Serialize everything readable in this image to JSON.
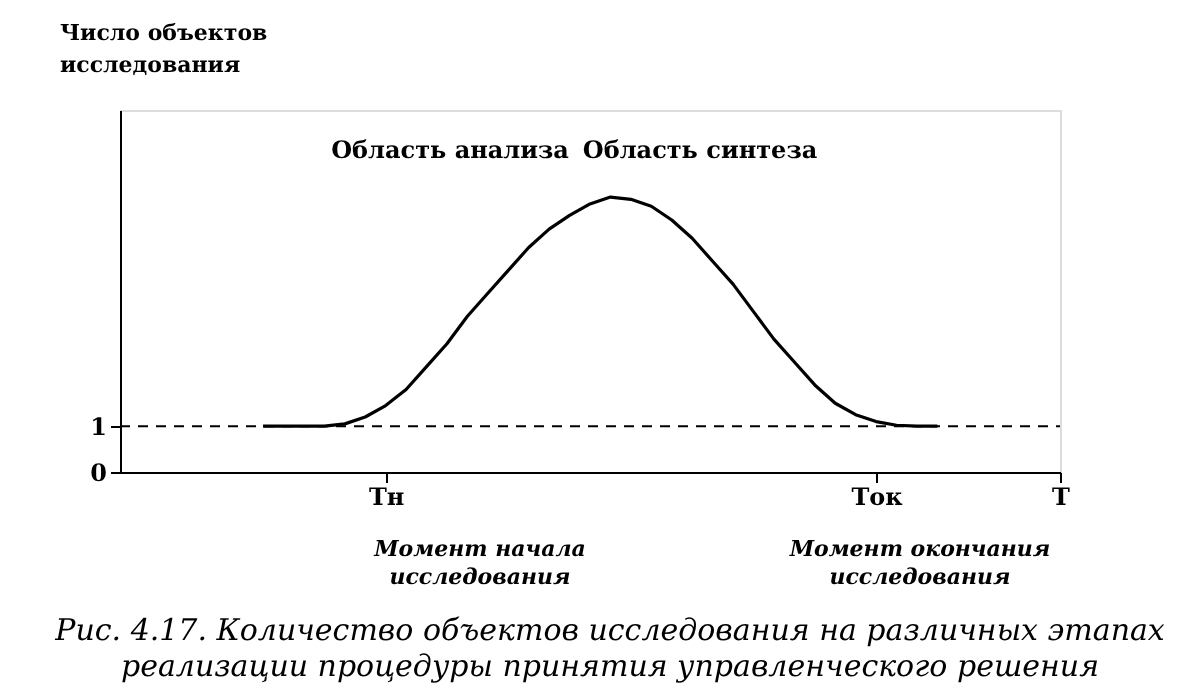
{
  "chart_data": {
    "type": "line",
    "ylabel": "Число объектов исследования",
    "categories": [
      null,
      null,
      null,
      null,
      null,
      null,
      null,
      null,
      null,
      null,
      null,
      null,
      null,
      "Tн",
      null,
      null,
      null,
      null,
      null,
      null,
      null,
      null,
      null,
      null,
      null,
      null,
      null,
      null,
      null,
      null,
      null,
      null,
      null,
      null,
      null,
      null,
      null,
      "Tок",
      null,
      null,
      null,
      null,
      null,
      null,
      null,
      null,
      "T"
    ],
    "values": [
      null,
      null,
      null,
      null,
      null,
      null,
      null,
      1,
      1,
      1,
      1,
      1.05,
      1.2,
      1.45,
      1.8,
      2.3,
      2.8,
      3.4,
      3.9,
      4.4,
      4.9,
      5.3,
      5.6,
      5.85,
      6,
      5.95,
      5.8,
      5.5,
      5.1,
      4.6,
      4.1,
      3.5,
      2.9,
      2.4,
      1.9,
      1.5,
      1.25,
      1.1,
      1.02,
      1,
      1,
      null,
      null,
      null,
      null,
      null,
      null
    ],
    "color": "#000000",
    "line_style": "solid",
    "ylim": [
      0,
      7.9
    ],
    "yticks": [
      0,
      1
    ],
    "grid": false,
    "ref_lines": [
      {
        "axis": "y",
        "value": 1,
        "line_style": "dashed"
      }
    ],
    "annotations": [
      "Область анализа",
      "Область синтеза",
      "Момент начала\nисследования",
      "Момент окончания\nисследования",
      "Рис. 4.17. Количество объектов исследования на различных этапах\nреализации процедуры принятия управленческого решения"
    ]
  }
}
